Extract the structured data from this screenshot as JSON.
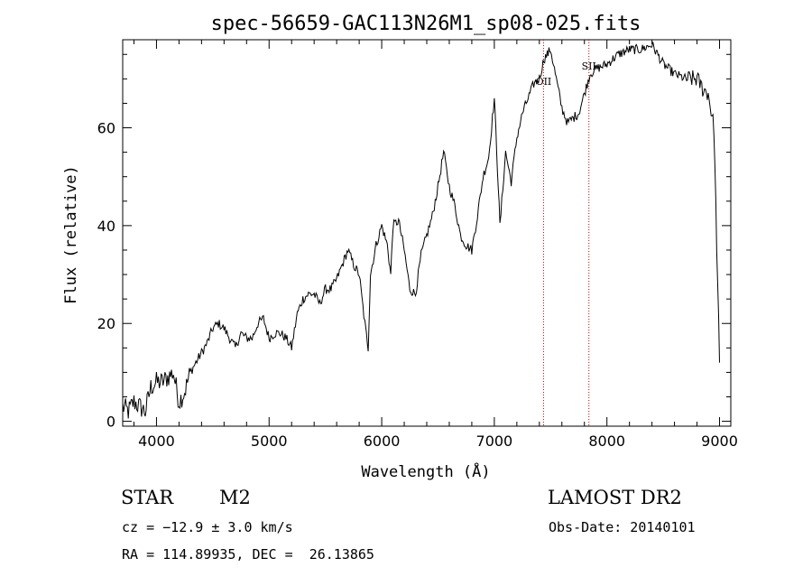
{
  "chart_data": {
    "type": "line",
    "title": "spec-56659-GAC113N26M1_sp08-025.fits",
    "xlabel": "Wavelength (Å)",
    "ylabel": "Flux (relative)",
    "xlim": [
      3700,
      9100
    ],
    "ylim": [
      -1,
      78
    ],
    "xticks": [
      4000,
      5000,
      6000,
      7000,
      8000,
      9000
    ],
    "yticks": [
      0,
      20,
      40,
      60
    ],
    "grid": false,
    "line_color": "#000000",
    "marker_color": "#cc0000",
    "lines": [
      {
        "label": "OII",
        "x": 7437
      },
      {
        "label": "SII",
        "x": 7840
      }
    ],
    "series": [
      {
        "x": [
          3700,
          3750,
          3800,
          3850,
          3900,
          3950,
          4000,
          4050,
          4100,
          4150,
          4200,
          4250,
          4300,
          4350,
          4400,
          4450,
          4500,
          4550,
          4600,
          4650,
          4700,
          4750,
          4800,
          4850,
          4900,
          4950,
          5000,
          5050,
          5100,
          5150,
          5200,
          5250,
          5300,
          5350,
          5400,
          5450,
          5500,
          5550,
          5600,
          5650,
          5700,
          5750,
          5800,
          5850,
          5880,
          5900,
          5950,
          6000,
          6050,
          6080,
          6100,
          6150,
          6200,
          6250,
          6300,
          6350,
          6400,
          6450,
          6500,
          6550,
          6600,
          6650,
          6700,
          6750,
          6800,
          6850,
          6900,
          6950,
          7000,
          7020,
          7050,
          7100,
          7150,
          7200,
          7250,
          7300,
          7350,
          7400,
          7440,
          7500,
          7550,
          7600,
          7650,
          7700,
          7750,
          7800,
          7850,
          7900,
          8000,
          8100,
          8200,
          8300,
          8400,
          8500,
          8600,
          8700,
          8800,
          8850,
          8900,
          8950,
          9000
        ],
        "values": [
          3,
          2,
          4,
          3,
          2,
          7,
          8,
          8,
          9,
          10,
          4,
          6,
          10,
          12,
          14,
          16,
          19,
          20,
          19,
          17,
          15,
          18,
          17,
          17,
          20,
          21,
          17,
          18,
          18,
          17,
          15,
          22,
          25,
          26,
          26,
          24,
          27,
          27,
          29,
          32,
          35,
          32,
          30,
          20,
          15,
          30,
          36,
          40,
          36,
          30,
          40,
          41,
          35,
          27,
          26,
          34,
          38,
          42,
          48,
          55,
          48,
          44,
          38,
          36,
          35,
          42,
          50,
          54,
          66,
          56,
          40,
          55,
          49,
          58,
          63,
          66,
          69,
          70,
          74,
          76,
          70,
          64,
          61,
          62,
          63,
          67,
          71,
          72,
          73,
          75,
          76,
          76,
          77,
          73,
          71,
          70,
          70,
          68,
          67,
          60,
          12
        ]
      }
    ]
  },
  "info": {
    "class": "STAR",
    "subclass": "M2",
    "survey": "LAMOST DR2",
    "cz": "cz = −12.9 ± 3.0 km/s",
    "obsdate": "Obs-Date: 20140101",
    "coords": "RA = 114.89935, DEC =  26.13865"
  }
}
